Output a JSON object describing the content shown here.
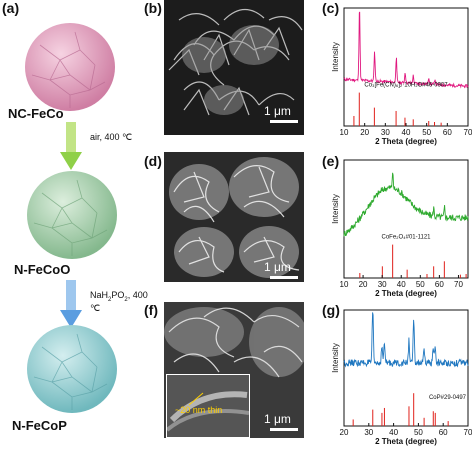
{
  "labels": {
    "a": "(a)",
    "b": "(b)",
    "c": "(c)",
    "d": "(d)",
    "e": "(e)",
    "f": "(f)",
    "g": "(g)"
  },
  "materials": [
    "NC-FeCo",
    "N-FeCoO",
    "N-FeCoP"
  ],
  "conditions": {
    "step1": "air, 400 ℃",
    "step2_prefix": "NaH",
    "step2_sub1": "2",
    "step2_mid": "PO",
    "step2_sub2": "2",
    "step2_suffix": ", 400 ℃"
  },
  "sem": {
    "scale_b": "1 μm",
    "scale_d": "1 μm",
    "scale_f": "1 μm",
    "inset_text": "~20 nm thin"
  },
  "colors": {
    "sphere1": "#e7a7c2",
    "sphere2": "#a5d3ae",
    "sphere3": "#8fcfd2",
    "arrow": "#8fd048",
    "arrow2": "#5a9de0",
    "trace_c": "#e0187f",
    "trace_e": "#2faa2f",
    "trace_g": "#1f77c0",
    "ref_line": "#e0201a",
    "inset_text": "#ffd000"
  },
  "chart_data": [
    {
      "panel": "c",
      "type": "line",
      "xlabel": "2 Theta (degree)",
      "ylabel": "Intensity",
      "xlim": [
        10,
        70
      ],
      "xticks": [
        10,
        20,
        30,
        40,
        50,
        60,
        70
      ],
      "reference": "Co₃[Fe(CN)₆]₂·10H₂O#46-0907",
      "peaks": [
        {
          "x": 17.5,
          "y": 1.0
        },
        {
          "x": 24.8,
          "y": 0.38
        },
        {
          "x": 35.3,
          "y": 0.32
        },
        {
          "x": 39.6,
          "y": 0.14
        },
        {
          "x": 43.5,
          "y": 0.1
        },
        {
          "x": 51.0,
          "y": 0.09
        },
        {
          "x": 54.0,
          "y": 0.07
        }
      ],
      "ref_lines": [
        {
          "x": 14.8,
          "h": 0.3
        },
        {
          "x": 17.4,
          "h": 1.0
        },
        {
          "x": 24.7,
          "h": 0.55
        },
        {
          "x": 35.2,
          "h": 0.45
        },
        {
          "x": 39.5,
          "h": 0.25
        },
        {
          "x": 43.5,
          "h": 0.2
        },
        {
          "x": 51.0,
          "h": 0.15
        },
        {
          "x": 53.8,
          "h": 0.12
        },
        {
          "x": 57.0,
          "h": 0.1
        }
      ],
      "baseline": 0.12
    },
    {
      "panel": "e",
      "type": "line",
      "xlabel": "2 Theta (degree)",
      "ylabel": "Intensity",
      "xlim": [
        10,
        75
      ],
      "xticks": [
        10,
        20,
        30,
        40,
        50,
        60,
        70
      ],
      "reference": "CoFe₂O₄#01-1121",
      "peaks": [
        {
          "x": 35.5,
          "y": 0.22
        },
        {
          "x": 57.0,
          "y": 0.12
        },
        {
          "x": 62.7,
          "y": 0.14
        }
      ],
      "ref_lines": [
        {
          "x": 18.3,
          "h": 0.15
        },
        {
          "x": 30.1,
          "h": 0.35
        },
        {
          "x": 35.5,
          "h": 1.0
        },
        {
          "x": 43.1,
          "h": 0.25
        },
        {
          "x": 53.5,
          "h": 0.12
        },
        {
          "x": 57.0,
          "h": 0.35
        },
        {
          "x": 62.6,
          "h": 0.5
        },
        {
          "x": 71.0,
          "h": 0.1
        },
        {
          "x": 74.0,
          "h": 0.12
        }
      ],
      "baseline": 0.2
    },
    {
      "panel": "g",
      "type": "line",
      "xlabel": "2 Theta (degree)",
      "ylabel": "Intensity",
      "xlim": [
        20,
        70
      ],
      "xticks": [
        20,
        30,
        40,
        50,
        60,
        70
      ],
      "reference": "CoP#29-0497",
      "peaks": [
        {
          "x": 31.6,
          "y": 0.68
        },
        {
          "x": 35.3,
          "y": 0.22
        },
        {
          "x": 36.3,
          "y": 0.25
        },
        {
          "x": 46.2,
          "y": 0.3
        },
        {
          "x": 48.1,
          "y": 0.55
        },
        {
          "x": 52.3,
          "y": 0.15
        },
        {
          "x": 56.0,
          "y": 0.2
        },
        {
          "x": 56.8,
          "y": 0.18
        }
      ],
      "ref_lines": [
        {
          "x": 23.7,
          "h": 0.2
        },
        {
          "x": 31.6,
          "h": 0.5
        },
        {
          "x": 35.3,
          "h": 0.4
        },
        {
          "x": 36.3,
          "h": 0.55
        },
        {
          "x": 46.2,
          "h": 0.6
        },
        {
          "x": 48.1,
          "h": 1.0
        },
        {
          "x": 52.3,
          "h": 0.25
        },
        {
          "x": 56.0,
          "h": 0.45
        },
        {
          "x": 56.8,
          "h": 0.4
        },
        {
          "x": 62.0,
          "h": 0.15
        }
      ],
      "baseline": 0.35
    }
  ]
}
